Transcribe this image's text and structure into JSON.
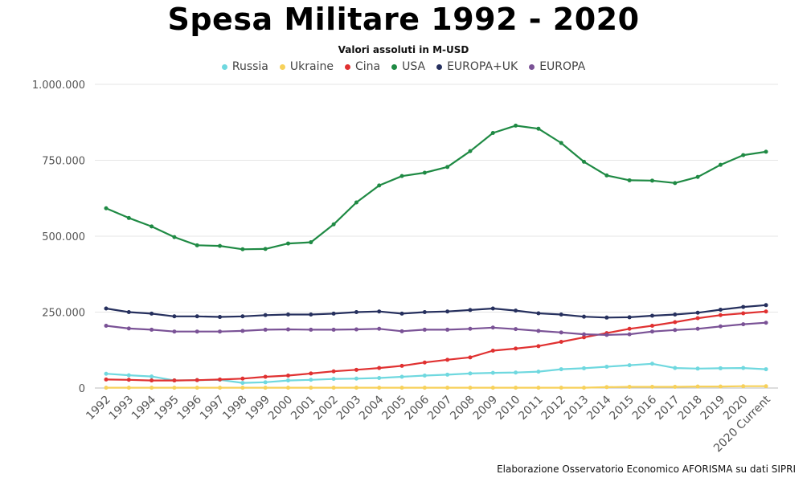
{
  "chart_data": {
    "type": "line",
    "title": "Spesa Militare 1992 - 2020",
    "subtitle": "Valori assoluti in M-USD",
    "source": "Elaborazione Osservatorio Economico AFORISMA su dati SIPRI",
    "categories": [
      "1992",
      "1993",
      "1994",
      "1995",
      "1996",
      "1997",
      "1998",
      "1999",
      "2000",
      "2001",
      "2002",
      "2003",
      "2004",
      "2005",
      "2006",
      "2007",
      "2008",
      "2009",
      "2010",
      "2011",
      "2012",
      "2013",
      "2014",
      "2015",
      "2016",
      "2017",
      "2018",
      "2019",
      "2020",
      "2020 Current"
    ],
    "y_ticks": [
      "0",
      "250.000",
      "500.000",
      "750.000",
      "1.000.000"
    ],
    "ylim": [
      0,
      1000000
    ],
    "grid": true,
    "legend_position": "top-center",
    "series": [
      {
        "name": "Russia",
        "color": "#6fd8df",
        "values": [
          47000,
          42000,
          38000,
          25000,
          26000,
          27000,
          17000,
          19000,
          25000,
          27000,
          30000,
          31000,
          33000,
          37000,
          41000,
          44000,
          48000,
          50000,
          51000,
          54000,
          62000,
          65000,
          70000,
          75000,
          80000,
          66000,
          64000,
          65000,
          66000,
          62000
        ]
      },
      {
        "name": "Ukraine",
        "color": "#f7d15a",
        "values": [
          1000,
          1000,
          1000,
          1000,
          1000,
          1000,
          1000,
          1000,
          1000,
          1000,
          1000,
          1000,
          1000,
          1000,
          1000,
          1000,
          1000,
          1000,
          1000,
          1000,
          1000,
          1000,
          3000,
          4000,
          4000,
          4000,
          5000,
          5000,
          6000,
          6000
        ]
      },
      {
        "name": "Cina",
        "color": "#e03131",
        "values": [
          28000,
          27000,
          25000,
          25000,
          26000,
          28000,
          31000,
          37000,
          41000,
          48000,
          55000,
          60000,
          66000,
          73000,
          84000,
          93000,
          101000,
          123000,
          130000,
          138000,
          152000,
          167000,
          181000,
          195000,
          205000,
          217000,
          230000,
          240000,
          246000,
          252000
        ]
      },
      {
        "name": "USA",
        "color": "#1f8a44",
        "values": [
          592000,
          560000,
          532000,
          497000,
          470000,
          468000,
          457000,
          458000,
          476000,
          480000,
          539000,
          611000,
          667000,
          698000,
          709000,
          728000,
          780000,
          840000,
          864000,
          854000,
          807000,
          745000,
          700000,
          684000,
          683000,
          675000,
          695000,
          735000,
          767000,
          778000
        ]
      },
      {
        "name": "EUROPA+UK",
        "color": "#26305e",
        "values": [
          262000,
          250000,
          245000,
          236000,
          236000,
          234000,
          236000,
          240000,
          242000,
          242000,
          245000,
          250000,
          252000,
          245000,
          250000,
          252000,
          257000,
          262000,
          255000,
          246000,
          242000,
          235000,
          232000,
          233000,
          238000,
          242000,
          248000,
          258000,
          267000,
          273000
        ]
      },
      {
        "name": "EUROPA",
        "color": "#7a5296",
        "values": [
          205000,
          196000,
          192000,
          186000,
          186000,
          186000,
          188000,
          192000,
          193000,
          192000,
          192000,
          193000,
          195000,
          187000,
          192000,
          192000,
          195000,
          199000,
          194000,
          188000,
          183000,
          177000,
          175000,
          177000,
          186000,
          191000,
          195000,
          203000,
          210000,
          215000
        ]
      }
    ]
  }
}
